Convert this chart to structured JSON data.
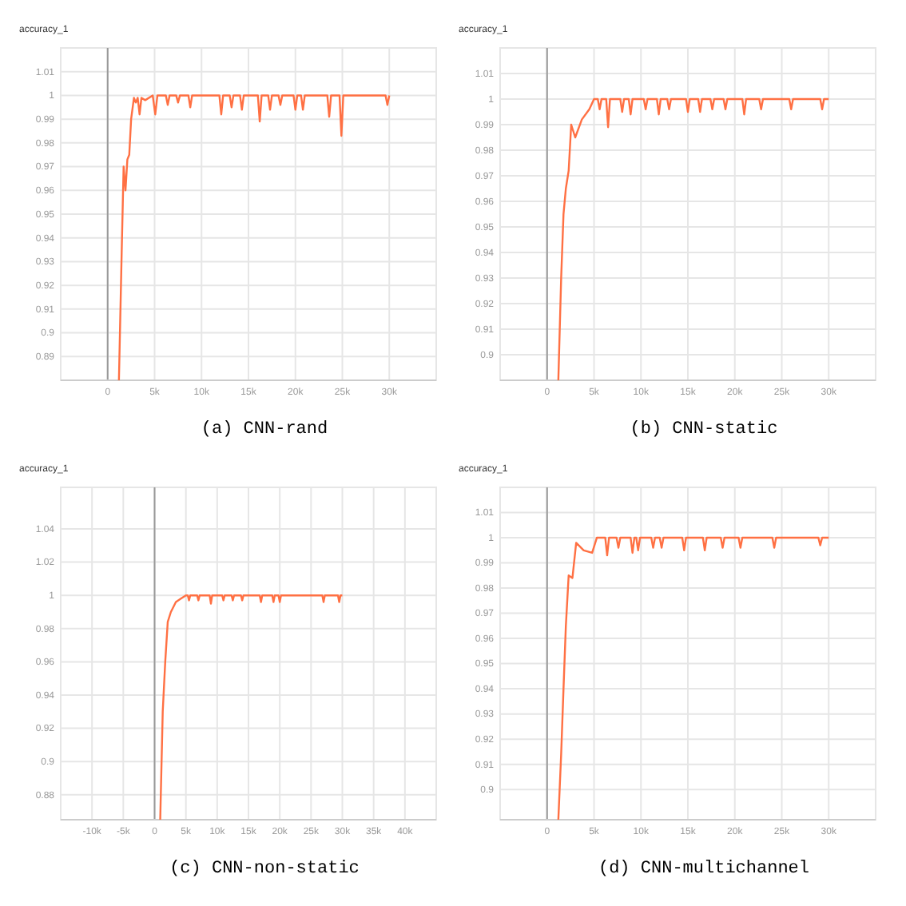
{
  "chart_data": [
    {
      "type": "line",
      "title": "(a) CNN-rand",
      "ylabel": "accuracy_1",
      "grid": true,
      "xlim": [
        -5,
        35
      ],
      "xticks": [
        {
          "value": 0,
          "label": "0"
        },
        {
          "value": 5,
          "label": "5k"
        },
        {
          "value": 10,
          "label": "10k"
        },
        {
          "value": 15,
          "label": "15k"
        },
        {
          "value": 20,
          "label": "20k"
        },
        {
          "value": 25,
          "label": "25k"
        },
        {
          "value": 30,
          "label": "30k"
        }
      ],
      "ylim": [
        0.88,
        1.02
      ],
      "yticks": [
        0.89,
        0.9,
        0.91,
        0.92,
        0.93,
        0.94,
        0.95,
        0.96,
        0.97,
        0.98,
        0.99,
        1,
        1.01
      ],
      "ref_lines": [
        {
          "axis": "x",
          "value": 0,
          "color": "#999999"
        }
      ],
      "series": [
        {
          "color": "#ff7043",
          "x": [
            1.2,
            1.5,
            1.7,
            1.9,
            2.1,
            2.3,
            2.5,
            2.8,
            3.0,
            3.2,
            3.4,
            3.6,
            4.0,
            4.8,
            5.07,
            5.3,
            6.2,
            6.4,
            6.6,
            7.3,
            7.5,
            7.7,
            8.6,
            8.8,
            9.0,
            11.9,
            12.1,
            12.3,
            13.0,
            13.2,
            13.4,
            14.1,
            14.3,
            14.5,
            16.0,
            16.2,
            16.4,
            17.1,
            17.3,
            17.5,
            18.2,
            18.4,
            18.6,
            19.8,
            20.0,
            20.2,
            20.6,
            20.8,
            21.0,
            23.4,
            23.6,
            23.8,
            24.7,
            24.9,
            25.1,
            29.6,
            29.8,
            30.0
          ],
          "values": [
            0.88,
            0.935,
            0.97,
            0.96,
            0.973,
            0.975,
            0.99,
            0.999,
            0.997,
            0.999,
            0.992,
            0.999,
            0.998,
            1,
            0.992,
            1,
            1,
            0.996,
            1,
            1,
            0.997,
            1,
            1,
            0.995,
            1,
            1,
            0.992,
            1,
            1,
            0.995,
            1,
            1,
            0.994,
            1,
            1,
            0.989,
            1,
            1,
            0.994,
            1,
            1,
            0.996,
            1,
            1,
            0.994,
            1,
            1,
            0.994,
            1,
            1,
            0.991,
            1,
            1,
            0.983,
            1,
            1,
            0.996,
            1
          ]
        }
      ]
    },
    {
      "type": "line",
      "title": "(b) CNN-static",
      "ylabel": "accuracy_1",
      "grid": true,
      "xlim": [
        -5,
        35
      ],
      "xticks": [
        {
          "value": 0,
          "label": "0"
        },
        {
          "value": 5,
          "label": "5k"
        },
        {
          "value": 10,
          "label": "10k"
        },
        {
          "value": 15,
          "label": "15k"
        },
        {
          "value": 20,
          "label": "20k"
        },
        {
          "value": 25,
          "label": "25k"
        },
        {
          "value": 30,
          "label": "30k"
        }
      ],
      "ylim": [
        0.89,
        1.02
      ],
      "yticks": [
        0.9,
        0.91,
        0.92,
        0.93,
        0.94,
        0.95,
        0.96,
        0.97,
        0.98,
        0.99,
        1,
        1.01
      ],
      "ref_lines": [
        {
          "axis": "x",
          "value": 0,
          "color": "#999999"
        }
      ],
      "series": [
        {
          "color": "#ff7043",
          "x": [
            1.2,
            1.5,
            1.75,
            2.0,
            2.3,
            2.57,
            3.0,
            3.7,
            4.5,
            5.0,
            5.4,
            5.6,
            5.8,
            6.3,
            6.5,
            6.7,
            7.8,
            8.0,
            8.2,
            8.7,
            8.9,
            9.1,
            10.3,
            10.5,
            10.7,
            11.7,
            11.9,
            12.1,
            12.8,
            13.0,
            13.2,
            14.8,
            15.0,
            15.2,
            16.1,
            16.3,
            16.5,
            17.4,
            17.6,
            17.8,
            18.8,
            19.0,
            19.2,
            20.8,
            21.0,
            21.2,
            22.6,
            22.8,
            23.0,
            25.8,
            26.0,
            26.2,
            29.1,
            29.3,
            29.5,
            30.0
          ],
          "values": [
            0.89,
            0.93,
            0.955,
            0.965,
            0.972,
            0.99,
            0.985,
            0.992,
            0.996,
            1,
            1,
            0.996,
            1,
            1,
            0.989,
            1,
            1,
            0.995,
            1,
            1,
            0.994,
            1,
            1,
            0.996,
            1,
            1,
            0.994,
            1,
            1,
            0.996,
            1,
            1,
            0.995,
            1,
            1,
            0.995,
            1,
            1,
            0.996,
            1,
            1,
            0.996,
            1,
            1,
            0.994,
            1,
            1,
            0.996,
            1,
            1,
            0.996,
            1,
            1,
            0.996,
            1,
            1
          ]
        }
      ]
    },
    {
      "type": "line",
      "title": "(c) CNN-non-static",
      "ylabel": "accuracy_1",
      "grid": true,
      "xlim": [
        -15,
        45
      ],
      "xticks": [
        {
          "value": -10,
          "label": "-10k"
        },
        {
          "value": -5,
          "label": "-5k"
        },
        {
          "value": 0,
          "label": "0"
        },
        {
          "value": 5,
          "label": "5k"
        },
        {
          "value": 10,
          "label": "10k"
        },
        {
          "value": 15,
          "label": "15k"
        },
        {
          "value": 20,
          "label": "20k"
        },
        {
          "value": 25,
          "label": "25k"
        },
        {
          "value": 30,
          "label": "30k"
        },
        {
          "value": 35,
          "label": "35k"
        },
        {
          "value": 40,
          "label": "40k"
        }
      ],
      "ylim": [
        0.865,
        1.065
      ],
      "yticks": [
        0.88,
        0.9,
        0.92,
        0.94,
        0.96,
        0.98,
        1,
        1.02,
        1.04
      ],
      "ref_lines": [
        {
          "axis": "x",
          "value": 0,
          "color": "#999999"
        }
      ],
      "series": [
        {
          "color": "#ff7043",
          "x": [
            0.9,
            1.3,
            1.7,
            2.1,
            2.6,
            3.4,
            4.2,
            5.0,
            5.3,
            5.5,
            5.7,
            6.8,
            7.0,
            7.2,
            8.8,
            9.0,
            9.2,
            10.8,
            11.0,
            11.2,
            12.3,
            12.5,
            12.7,
            13.8,
            14.0,
            14.2,
            16.8,
            17.0,
            17.2,
            18.8,
            19.0,
            19.2,
            19.8,
            20.0,
            20.2,
            26.8,
            27.0,
            27.2,
            29.3,
            29.5,
            29.7,
            30.0
          ],
          "values": [
            0.865,
            0.93,
            0.96,
            0.984,
            0.99,
            0.996,
            0.998,
            1,
            1,
            0.997,
            1,
            1,
            0.997,
            1,
            1,
            0.995,
            1,
            1,
            0.997,
            1,
            1,
            0.997,
            1,
            1,
            0.997,
            1,
            1,
            0.996,
            1,
            1,
            0.996,
            1,
            1,
            0.996,
            1,
            1,
            0.996,
            1,
            1,
            0.996,
            1,
            1
          ]
        }
      ]
    },
    {
      "type": "line",
      "title": "(d) CNN-multichannel",
      "ylabel": "accuracy_1",
      "grid": true,
      "xlim": [
        -5,
        35
      ],
      "xticks": [
        {
          "value": 0,
          "label": "0"
        },
        {
          "value": 5,
          "label": "5k"
        },
        {
          "value": 10,
          "label": "10k"
        },
        {
          "value": 15,
          "label": "15k"
        },
        {
          "value": 20,
          "label": "20k"
        },
        {
          "value": 25,
          "label": "25k"
        },
        {
          "value": 30,
          "label": "30k"
        }
      ],
      "ylim": [
        0.888,
        1.02
      ],
      "yticks": [
        0.9,
        0.91,
        0.92,
        0.93,
        0.94,
        0.95,
        0.96,
        0.97,
        0.98,
        0.99,
        1,
        1.01
      ],
      "ref_lines": [
        {
          "axis": "x",
          "value": 0,
          "color": "#999999"
        }
      ],
      "series": [
        {
          "color": "#ff7043",
          "x": [
            1.2,
            1.5,
            1.75,
            2.0,
            2.3,
            2.7,
            3.1,
            3.9,
            4.8,
            5.3,
            6.2,
            6.4,
            6.6,
            7.4,
            7.6,
            7.8,
            8.9,
            9.1,
            9.3,
            9.5,
            9.7,
            9.9,
            11.1,
            11.3,
            11.5,
            12.0,
            12.2,
            12.4,
            14.4,
            14.6,
            14.8,
            16.6,
            16.8,
            17.0,
            18.5,
            18.7,
            18.9,
            20.4,
            20.6,
            20.8,
            24.0,
            24.2,
            24.4,
            28.9,
            29.1,
            29.3,
            30.0
          ],
          "values": [
            0.888,
            0.914,
            0.94,
            0.965,
            0.985,
            0.984,
            0.998,
            0.995,
            0.994,
            1,
            1,
            0.993,
            1,
            1,
            0.996,
            1,
            1,
            0.994,
            1,
            1,
            0.995,
            1,
            1,
            0.996,
            1,
            1,
            0.996,
            1,
            1,
            0.995,
            1,
            1,
            0.995,
            1,
            1,
            0.996,
            1,
            1,
            0.996,
            1,
            1,
            0.996,
            1,
            1,
            0.997,
            1,
            1
          ]
        }
      ]
    }
  ]
}
